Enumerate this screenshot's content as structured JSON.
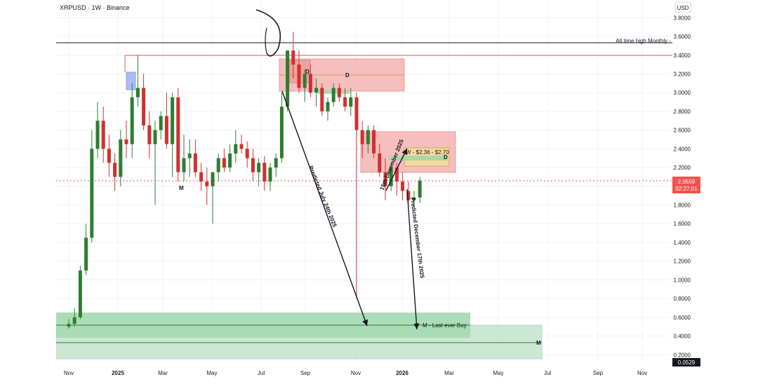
{
  "header": {
    "symbol": "XRPUSD · 1W · Binance",
    "currency": "USD"
  },
  "colors": {
    "up": "#26a69a",
    "up_body": "#2e7d32",
    "down": "#ef5350",
    "down_body": "#d32f2f",
    "grid": "#f0f3fa",
    "axis_text": "#131722",
    "zone_red": "#f4a3a3",
    "zone_green": "#8fd19e",
    "ath_line": "#131722",
    "res_line": "#ef5350"
  },
  "chart_data": {
    "type": "candlestick",
    "x_ticks": [
      "Nov",
      "2025",
      "Mar",
      "May",
      "Jul",
      "Sep",
      "Nov",
      "2026",
      "Mar",
      "May",
      "Jul",
      "Sep",
      "Nov"
    ],
    "y_ticks": [
      "3.8000",
      "3.6000",
      "3.4000",
      "3.2000",
      "3.0000",
      "2.8000",
      "2.6000",
      "2.4000",
      "2.2000",
      "2.0000",
      "1.8000",
      "1.6000",
      "1.4000",
      "1.2000",
      "1.0000",
      "0.8000",
      "0.6000",
      "0.4000",
      "0.2000"
    ],
    "ylim": [
      0.0,
      3.9
    ],
    "candles": [
      {
        "o": 0.5,
        "h": 0.58,
        "l": 0.48,
        "c": 0.53
      },
      {
        "o": 0.53,
        "h": 0.7,
        "l": 0.5,
        "c": 0.6
      },
      {
        "o": 0.6,
        "h": 1.15,
        "l": 0.58,
        "c": 1.1
      },
      {
        "o": 1.1,
        "h": 1.6,
        "l": 1.05,
        "c": 1.45
      },
      {
        "o": 1.45,
        "h": 2.6,
        "l": 1.4,
        "c": 2.4
      },
      {
        "o": 2.4,
        "h": 2.9,
        "l": 2.3,
        "c": 2.7
      },
      {
        "o": 2.7,
        "h": 2.85,
        "l": 2.25,
        "c": 2.4
      },
      {
        "o": 2.4,
        "h": 2.55,
        "l": 2.1,
        "c": 2.25
      },
      {
        "o": 2.25,
        "h": 2.35,
        "l": 1.95,
        "c": 2.1
      },
      {
        "o": 2.1,
        "h": 2.6,
        "l": 2.0,
        "c": 2.5
      },
      {
        "o": 2.5,
        "h": 2.7,
        "l": 2.3,
        "c": 2.45
      },
      {
        "o": 2.45,
        "h": 3.1,
        "l": 2.3,
        "c": 2.95
      },
      {
        "o": 2.95,
        "h": 3.4,
        "l": 2.85,
        "c": 3.05
      },
      {
        "o": 3.05,
        "h": 3.2,
        "l": 2.6,
        "c": 2.65
      },
      {
        "o": 2.65,
        "h": 2.8,
        "l": 2.3,
        "c": 2.45
      },
      {
        "o": 2.45,
        "h": 2.7,
        "l": 1.8,
        "c": 2.6
      },
      {
        "o": 2.6,
        "h": 2.8,
        "l": 2.5,
        "c": 2.75
      },
      {
        "o": 2.75,
        "h": 3.0,
        "l": 2.4,
        "c": 2.45
      },
      {
        "o": 2.45,
        "h": 3.0,
        "l": 2.1,
        "c": 2.95
      },
      {
        "o": 2.95,
        "h": 3.05,
        "l": 2.05,
        "c": 2.15
      },
      {
        "o": 2.15,
        "h": 2.55,
        "l": 2.05,
        "c": 2.3
      },
      {
        "o": 2.3,
        "h": 2.5,
        "l": 2.1,
        "c": 2.35
      },
      {
        "o": 2.35,
        "h": 2.5,
        "l": 2.1,
        "c": 2.15
      },
      {
        "o": 2.15,
        "h": 2.25,
        "l": 1.95,
        "c": 2.05
      },
      {
        "o": 2.05,
        "h": 2.2,
        "l": 1.8,
        "c": 2.0
      },
      {
        "o": 2.0,
        "h": 2.15,
        "l": 1.6,
        "c": 2.15
      },
      {
        "o": 2.15,
        "h": 2.35,
        "l": 2.05,
        "c": 2.3
      },
      {
        "o": 2.3,
        "h": 2.4,
        "l": 2.15,
        "c": 2.2
      },
      {
        "o": 2.2,
        "h": 2.45,
        "l": 2.15,
        "c": 2.35
      },
      {
        "o": 2.35,
        "h": 2.6,
        "l": 2.25,
        "c": 2.45
      },
      {
        "o": 2.45,
        "h": 2.55,
        "l": 2.35,
        "c": 2.4
      },
      {
        "o": 2.4,
        "h": 2.48,
        "l": 2.2,
        "c": 2.3
      },
      {
        "o": 2.3,
        "h": 2.4,
        "l": 2.05,
        "c": 2.15
      },
      {
        "o": 2.15,
        "h": 2.3,
        "l": 2.0,
        "c": 2.25
      },
      {
        "o": 2.25,
        "h": 2.32,
        "l": 1.95,
        "c": 2.05
      },
      {
        "o": 2.05,
        "h": 2.25,
        "l": 1.95,
        "c": 2.2
      },
      {
        "o": 2.2,
        "h": 2.35,
        "l": 2.1,
        "c": 2.3
      },
      {
        "o": 2.3,
        "h": 3.0,
        "l": 2.25,
        "c": 2.85
      },
      {
        "o": 2.85,
        "h": 3.45,
        "l": 2.8,
        "c": 3.45
      },
      {
        "o": 3.45,
        "h": 3.65,
        "l": 3.15,
        "c": 3.3
      },
      {
        "o": 3.3,
        "h": 3.45,
        "l": 3.0,
        "c": 3.05
      },
      {
        "o": 3.05,
        "h": 3.25,
        "l": 2.9,
        "c": 3.2
      },
      {
        "o": 3.2,
        "h": 3.3,
        "l": 2.95,
        "c": 3.0
      },
      {
        "o": 3.0,
        "h": 3.15,
        "l": 2.85,
        "c": 3.05
      },
      {
        "o": 3.05,
        "h": 3.1,
        "l": 2.75,
        "c": 2.8
      },
      {
        "o": 2.8,
        "h": 2.95,
        "l": 2.7,
        "c": 2.9
      },
      {
        "o": 2.9,
        "h": 3.1,
        "l": 2.85,
        "c": 3.05
      },
      {
        "o": 3.05,
        "h": 3.1,
        "l": 2.9,
        "c": 2.95
      },
      {
        "o": 2.95,
        "h": 3.05,
        "l": 2.8,
        "c": 2.85
      },
      {
        "o": 2.85,
        "h": 3.05,
        "l": 2.75,
        "c": 2.95
      },
      {
        "o": 2.95,
        "h": 3.0,
        "l": 0.8,
        "c": 2.6
      },
      {
        "o": 2.6,
        "h": 2.7,
        "l": 2.3,
        "c": 2.45
      },
      {
        "o": 2.45,
        "h": 2.65,
        "l": 2.35,
        "c": 2.6
      },
      {
        "o": 2.6,
        "h": 2.65,
        "l": 2.3,
        "c": 2.35
      },
      {
        "o": 2.35,
        "h": 2.45,
        "l": 2.1,
        "c": 2.15
      },
      {
        "o": 2.15,
        "h": 2.3,
        "l": 1.85,
        "c": 2.0
      },
      {
        "o": 2.0,
        "h": 2.25,
        "l": 1.95,
        "c": 2.2
      },
      {
        "o": 2.2,
        "h": 2.25,
        "l": 1.9,
        "c": 2.05
      },
      {
        "o": 2.05,
        "h": 2.15,
        "l": 1.85,
        "c": 1.95
      },
      {
        "o": 1.95,
        "h": 2.05,
        "l": 1.8,
        "c": 1.85
      },
      {
        "o": 1.85,
        "h": 1.95,
        "l": 1.78,
        "c": 1.88
      },
      {
        "o": 1.88,
        "h": 2.1,
        "l": 1.82,
        "c": 2.06
      }
    ],
    "current_price": "2.0559",
    "countdown": "02:27:01",
    "low_price_tag": "0.0529",
    "annotations": {
      "ath": "All time high Monthly -",
      "zone_d_upper": "D",
      "zone_d_upper_inner": "D",
      "zone_w": "W - $2.36 - $2.70",
      "zone_w_d": "D",
      "left_m": "M",
      "buy_zone": "M - Last ever Buy",
      "lower_m": "M",
      "pred_july": "Predicted July 24th 2025",
      "pred_dec_a": "15th December 2025",
      "pred_dec_b": "Predicted December 17th 2025"
    }
  }
}
